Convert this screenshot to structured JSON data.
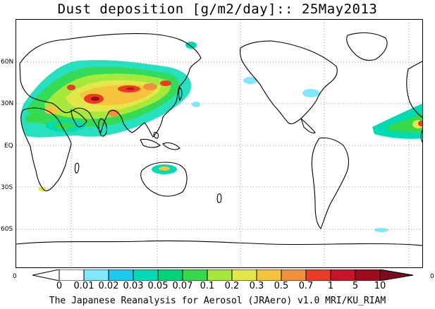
{
  "title": "Dust deposition [g/m2/day]:: 25May2013",
  "latitude_labels": [
    "60N",
    "30N",
    "EQ",
    "30S",
    "60S"
  ],
  "colorbar": {
    "left_edge_label": "0",
    "right_edge_label": "0",
    "tick_labels": [
      "0",
      "0.01",
      "0.02",
      "0.03",
      "0.05",
      "0.07",
      "0.1",
      "0.2",
      "0.3",
      "0.5",
      "0.7",
      "1",
      "5",
      "10"
    ],
    "colors": [
      "#ffffff",
      "#ffffff",
      "#7fe8ff",
      "#1ec9f0",
      "#00dbb4",
      "#00d27a",
      "#37d94a",
      "#a6e83c",
      "#e3e84a",
      "#f6c33c",
      "#f08f3c",
      "#ea3c24",
      "#c8142a",
      "#a00a1e",
      "#7a0c1e"
    ],
    "under_color": "#ffffff",
    "over_color": "#7a0c1e"
  },
  "credit": "The Japanese Reanalysis for Aerosol (JRAero) v1.0 MRI/KU_RIAM"
}
